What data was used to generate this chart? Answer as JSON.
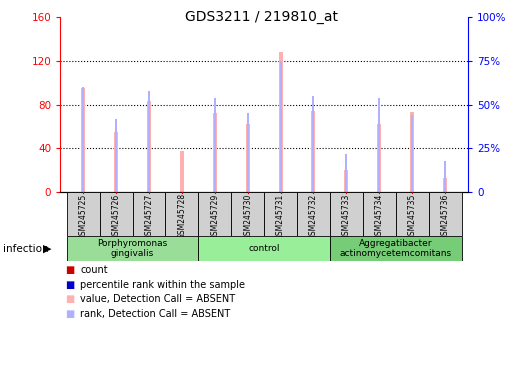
{
  "title": "GDS3211 / 219810_at",
  "samples": [
    "GSM245725",
    "GSM245726",
    "GSM245727",
    "GSM245728",
    "GSM245729",
    "GSM245730",
    "GSM245731",
    "GSM245732",
    "GSM245733",
    "GSM245734",
    "GSM245735",
    "GSM245736"
  ],
  "absent_value": [
    95,
    55,
    83,
    38,
    72,
    62,
    128,
    74,
    20,
    62,
    73,
    13
  ],
  "absent_rank": [
    60,
    42,
    58,
    0,
    54,
    45,
    75,
    55,
    22,
    54,
    44,
    18
  ],
  "ylim_left": [
    0,
    160
  ],
  "ylim_right": [
    0,
    100
  ],
  "yticks_left": [
    0,
    40,
    80,
    120,
    160
  ],
  "yticks_right": [
    0,
    25,
    50,
    75,
    100
  ],
  "ytick_labels_right": [
    "0",
    "25%",
    "50%",
    "75%",
    "100%"
  ],
  "absent_count_color": "#ffb0b0",
  "absent_rank_color": "#b0b0ff",
  "bar_width": 0.12,
  "rank_bar_width": 0.06,
  "group_defs": [
    {
      "start": 0,
      "end": 4,
      "label": "Porphyromonas\ngingivalis",
      "color": "#99dd99"
    },
    {
      "start": 4,
      "end": 8,
      "label": "control",
      "color": "#99ee99"
    },
    {
      "start": 8,
      "end": 12,
      "label": "Aggregatibacter\nactinomycetemcomitans",
      "color": "#77cc77"
    }
  ],
  "sample_box_color": "#d0d0d0",
  "legend_items": [
    {
      "label": "count",
      "color": "#cc0000"
    },
    {
      "label": "percentile rank within the sample",
      "color": "#0000cc"
    },
    {
      "label": "value, Detection Call = ABSENT",
      "color": "#ffb0b0"
    },
    {
      "label": "rank, Detection Call = ABSENT",
      "color": "#b0b0ff"
    }
  ]
}
